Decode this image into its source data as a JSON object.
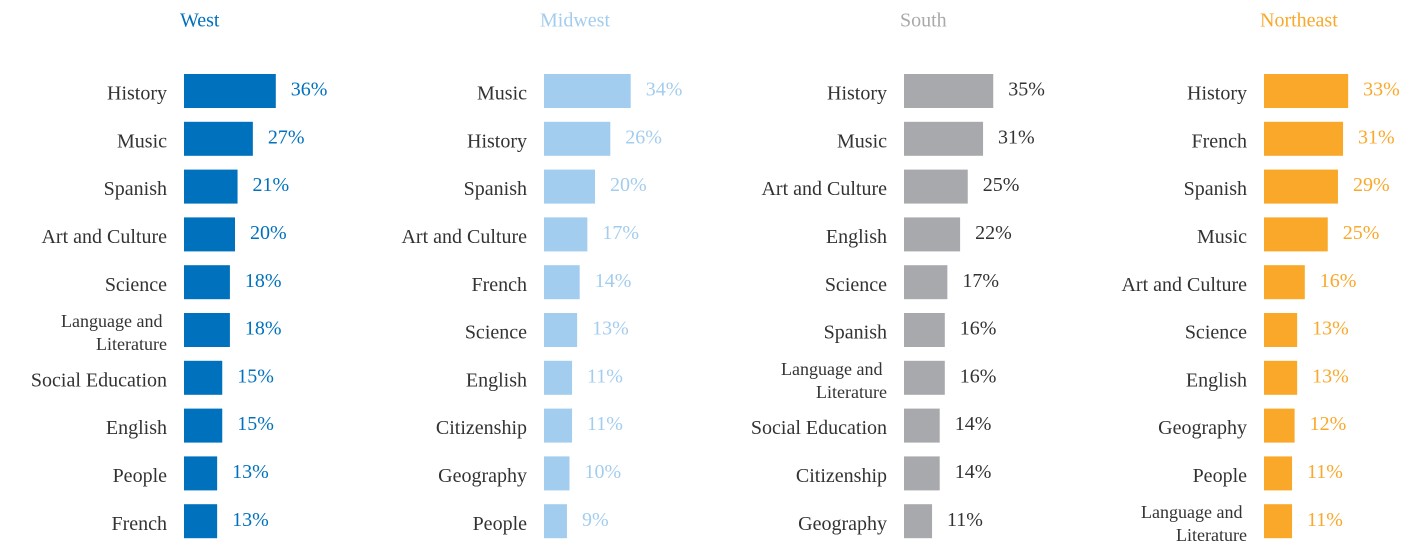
{
  "chart_data": [
    {
      "type": "bar",
      "title": "West",
      "color": "#0071bc",
      "label_color": "#0071bc",
      "categories": [
        "History",
        "Music",
        "Spanish",
        "Art and Culture",
        "Science",
        "Language and Literature",
        "Social Education",
        "English",
        "People",
        "French"
      ],
      "values": [
        36,
        27,
        21,
        20,
        18,
        18,
        15,
        15,
        13,
        13
      ],
      "value_labels": [
        "36%",
        "27%",
        "21%",
        "20%",
        "18%",
        "18%",
        "15%",
        "15%",
        "13%",
        "13%"
      ]
    },
    {
      "type": "bar",
      "title": "Midwest",
      "color": "#a3cdee",
      "label_color": "#a3cdee",
      "categories": [
        "Music",
        "History",
        "Spanish",
        "Art and Culture",
        "French",
        "Science",
        "English",
        "Citizenship",
        "Geography",
        "People"
      ],
      "values": [
        34,
        26,
        20,
        17,
        14,
        13,
        11,
        11,
        10,
        9
      ],
      "value_labels": [
        "34%",
        "26%",
        "20%",
        "17%",
        "14%",
        "13%",
        "11%",
        "11%",
        "10%",
        "9%"
      ]
    },
    {
      "type": "bar",
      "title": "South",
      "color": "#a7a9ac",
      "label_color": "#333333",
      "categories": [
        "History",
        "Music",
        "Art and Culture",
        "English",
        "Science",
        "Spanish",
        "Language and Literature",
        "Social Education",
        "Citizenship",
        "Geography"
      ],
      "values": [
        35,
        31,
        25,
        22,
        17,
        16,
        16,
        14,
        14,
        11
      ],
      "value_labels": [
        "35%",
        "31%",
        "25%",
        "22%",
        "17%",
        "16%",
        "16%",
        "14%",
        "14%",
        "11%"
      ]
    },
    {
      "type": "bar",
      "title": "Northeast",
      "color": "#f9a82a",
      "label_color": "#f9a82a",
      "categories": [
        "History",
        "French",
        "Spanish",
        "Music",
        "Art and Culture",
        "Science",
        "English",
        "Geography",
        "People",
        "Language and Literature"
      ],
      "values": [
        33,
        31,
        29,
        25,
        16,
        13,
        13,
        12,
        11,
        11
      ],
      "value_labels": [
        "33%",
        "31%",
        "29%",
        "25%",
        "16%",
        "13%",
        "13%",
        "12%",
        "11%",
        "11%"
      ]
    }
  ]
}
